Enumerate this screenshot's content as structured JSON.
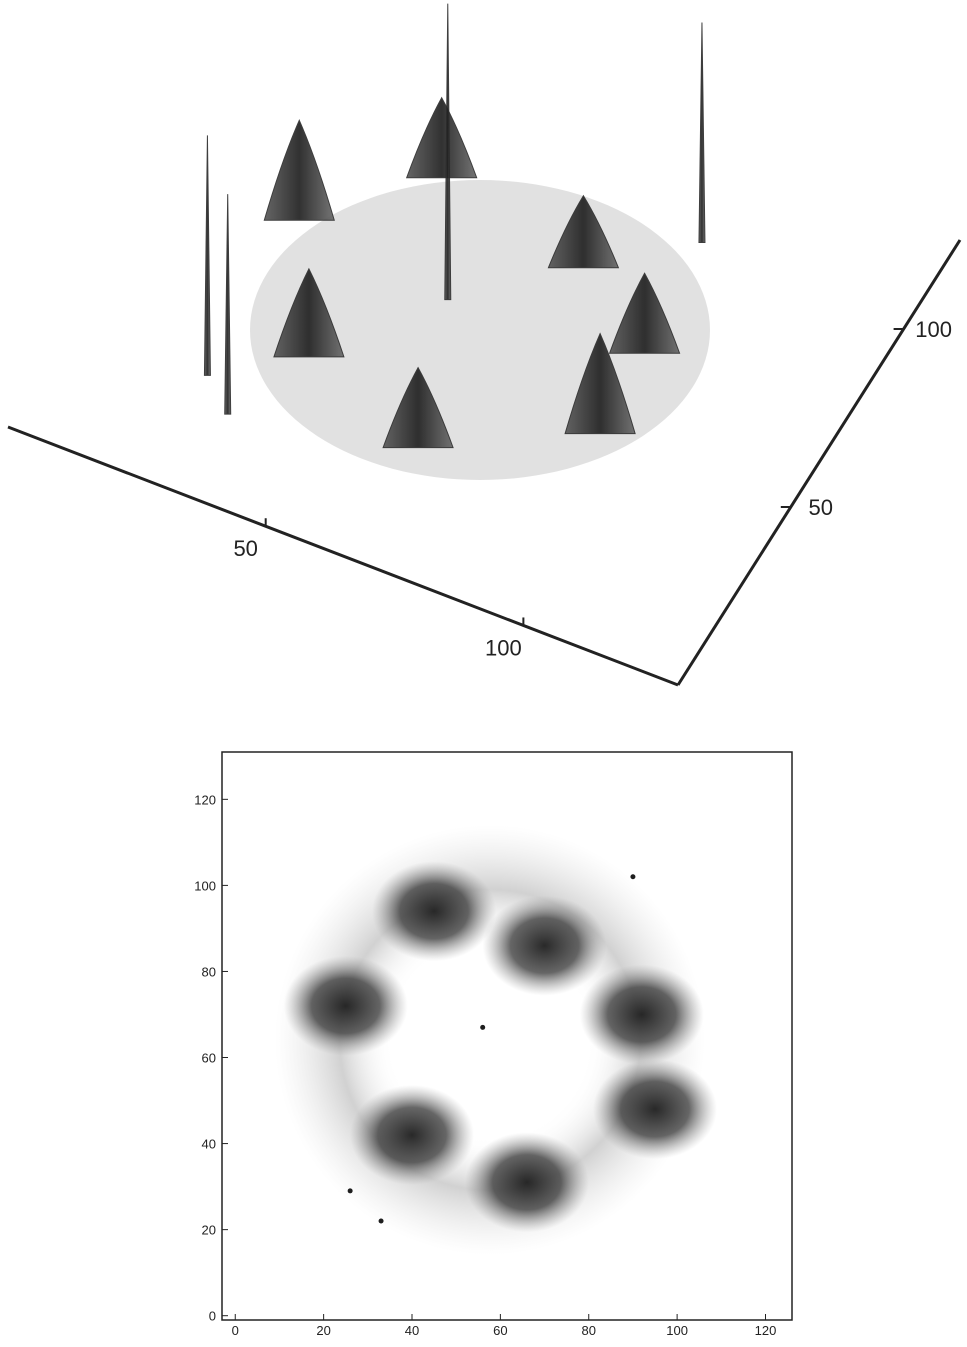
{
  "chart_data": [
    {
      "type": "surface",
      "xlim": [
        0,
        130
      ],
      "ylim": [
        0,
        125
      ],
      "xticks": [
        50,
        100
      ],
      "yticks": [
        50,
        100
      ],
      "color": "#2a2a2a",
      "peaks": {
        "x": [
          25,
          43,
          74,
          40,
          66,
          93,
          92,
          56,
          90,
          26,
          33
        ],
        "y": [
          72,
          94,
          86,
          42,
          31,
          50,
          72,
          67,
          102,
          29,
          22
        ],
        "z": [
          25,
          20,
          18,
          22,
          20,
          25,
          20,
          74,
          55,
          60,
          55
        ]
      }
    },
    {
      "type": "density",
      "xlim": [
        -3,
        126
      ],
      "ylim": [
        -1,
        131
      ],
      "xticks": [
        0,
        20,
        40,
        60,
        80,
        100,
        120
      ],
      "yticks": [
        0,
        20,
        40,
        60,
        80,
        100,
        120
      ],
      "color": "#1e1e1e",
      "blobs": {
        "x": [
          25,
          45,
          70,
          40,
          66,
          95,
          92
        ],
        "y": [
          72,
          94,
          86,
          42,
          31,
          48,
          70
        ]
      },
      "points": {
        "x": [
          90,
          56,
          26,
          33
        ],
        "y": [
          102,
          67,
          29,
          22
        ]
      }
    }
  ]
}
